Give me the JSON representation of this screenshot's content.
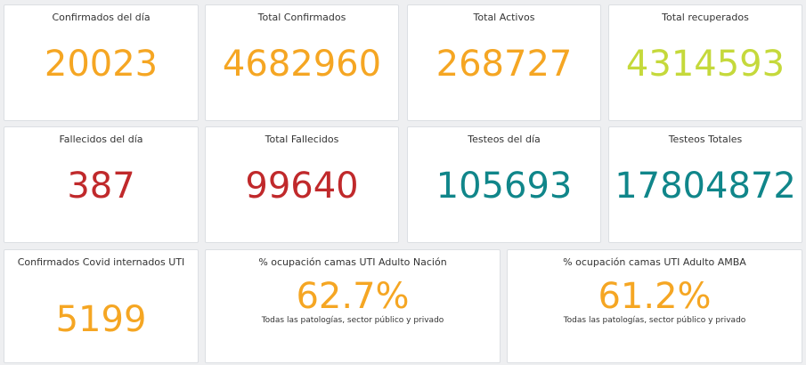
{
  "colors": {
    "orange": "#f5a623",
    "green": "#c5d93b",
    "red": "#c0292b",
    "teal": "#10868a"
  },
  "cards": [
    {
      "title": "Confirmados del día",
      "value": "20023",
      "color": "orange"
    },
    {
      "title": "Total Confirmados",
      "value": "4682960",
      "color": "orange"
    },
    {
      "title": "Total Activos",
      "value": "268727",
      "color": "orange"
    },
    {
      "title": "Total recuperados",
      "value": "4314593",
      "color": "green"
    },
    {
      "title": "Fallecidos del día",
      "value": "387",
      "color": "red"
    },
    {
      "title": "Total Fallecidos",
      "value": "99640",
      "color": "red"
    },
    {
      "title": "Testeos del día",
      "value": "105693",
      "color": "teal"
    },
    {
      "title": "Testeos Totales",
      "value": "17804872",
      "color": "teal"
    },
    {
      "title": "Confirmados Covid internados UTI",
      "value": "5199",
      "color": "orange"
    },
    {
      "title": "% ocupación camas UTI Adulto Nación",
      "value": "62.7%",
      "subtitle": "Todas las patologías, sector público y privado",
      "color": "orange"
    },
    {
      "title": "% ocupación camas UTI Adulto AMBA",
      "value": "61.2%",
      "subtitle": "Todas las patologías, sector público y privado",
      "color": "orange"
    }
  ]
}
